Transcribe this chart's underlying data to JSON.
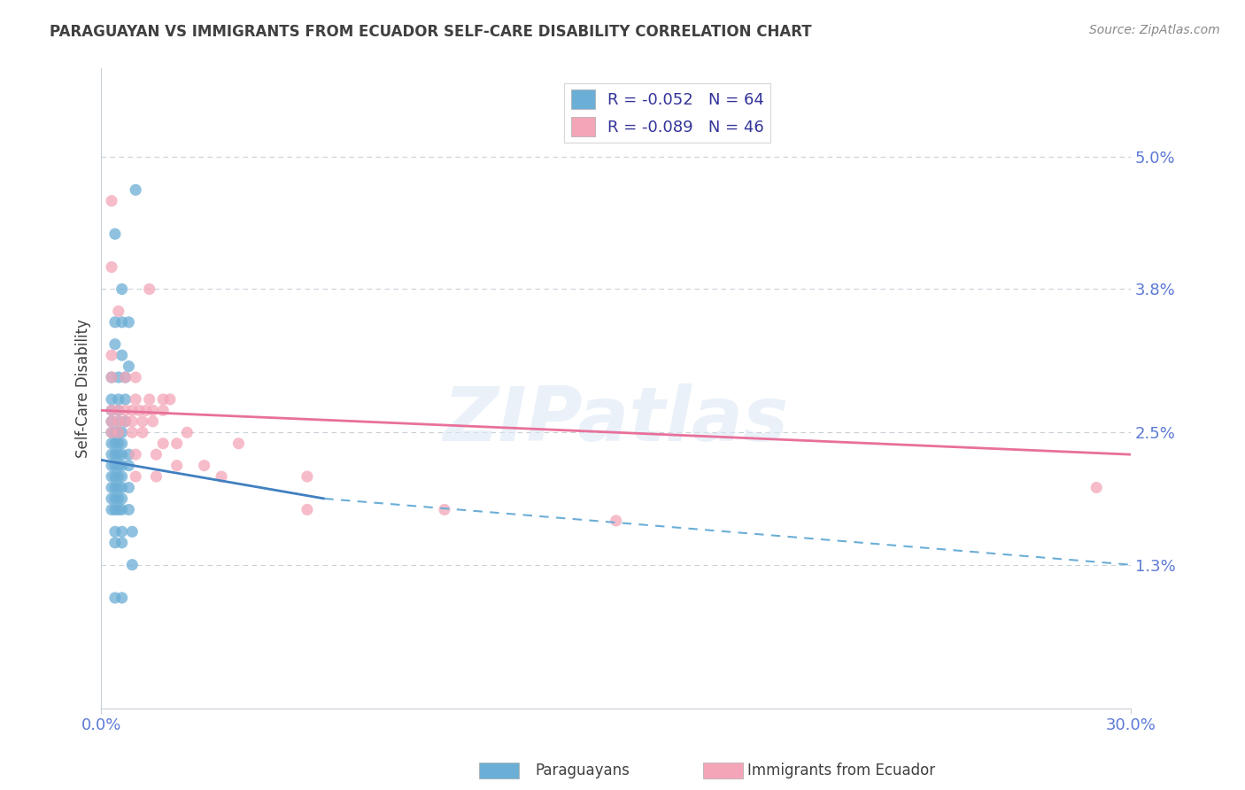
{
  "title": "PARAGUAYAN VS IMMIGRANTS FROM ECUADOR SELF-CARE DISABILITY CORRELATION CHART",
  "source_text": "Source: ZipAtlas.com",
  "ylabel": "Self-Care Disability",
  "xlim": [
    0.0,
    0.3
  ],
  "ylim": [
    0.0,
    0.058
  ],
  "ytick_labels": [
    "1.3%",
    "2.5%",
    "3.8%",
    "5.0%"
  ],
  "ytick_values": [
    0.013,
    0.025,
    0.038,
    0.05
  ],
  "xtick_labels": [
    "0.0%",
    "30.0%"
  ],
  "xtick_values": [
    0.0,
    0.3
  ],
  "legend_entry1": "R = -0.052   N = 64",
  "legend_entry2": "R = -0.089   N = 46",
  "legend_label1": "Paraguayans",
  "legend_label2": "Immigrants from Ecuador",
  "blue_color": "#6baed6",
  "pink_color": "#f4a6b8",
  "blue_scatter": [
    [
      0.004,
      0.043
    ],
    [
      0.006,
      0.038
    ],
    [
      0.01,
      0.047
    ],
    [
      0.004,
      0.035
    ],
    [
      0.006,
      0.035
    ],
    [
      0.008,
      0.035
    ],
    [
      0.004,
      0.033
    ],
    [
      0.006,
      0.032
    ],
    [
      0.008,
      0.031
    ],
    [
      0.003,
      0.03
    ],
    [
      0.005,
      0.03
    ],
    [
      0.007,
      0.03
    ],
    [
      0.003,
      0.028
    ],
    [
      0.005,
      0.028
    ],
    [
      0.007,
      0.028
    ],
    [
      0.003,
      0.027
    ],
    [
      0.005,
      0.027
    ],
    [
      0.003,
      0.026
    ],
    [
      0.005,
      0.026
    ],
    [
      0.007,
      0.026
    ],
    [
      0.003,
      0.025
    ],
    [
      0.004,
      0.025
    ],
    [
      0.005,
      0.025
    ],
    [
      0.006,
      0.025
    ],
    [
      0.003,
      0.024
    ],
    [
      0.004,
      0.024
    ],
    [
      0.005,
      0.024
    ],
    [
      0.006,
      0.024
    ],
    [
      0.003,
      0.023
    ],
    [
      0.004,
      0.023
    ],
    [
      0.005,
      0.023
    ],
    [
      0.006,
      0.023
    ],
    [
      0.008,
      0.023
    ],
    [
      0.003,
      0.022
    ],
    [
      0.004,
      0.022
    ],
    [
      0.005,
      0.022
    ],
    [
      0.006,
      0.022
    ],
    [
      0.008,
      0.022
    ],
    [
      0.003,
      0.021
    ],
    [
      0.004,
      0.021
    ],
    [
      0.005,
      0.021
    ],
    [
      0.006,
      0.021
    ],
    [
      0.003,
      0.02
    ],
    [
      0.004,
      0.02
    ],
    [
      0.005,
      0.02
    ],
    [
      0.006,
      0.02
    ],
    [
      0.008,
      0.02
    ],
    [
      0.003,
      0.019
    ],
    [
      0.004,
      0.019
    ],
    [
      0.005,
      0.019
    ],
    [
      0.006,
      0.019
    ],
    [
      0.003,
      0.018
    ],
    [
      0.004,
      0.018
    ],
    [
      0.005,
      0.018
    ],
    [
      0.006,
      0.018
    ],
    [
      0.008,
      0.018
    ],
    [
      0.004,
      0.016
    ],
    [
      0.006,
      0.016
    ],
    [
      0.009,
      0.016
    ],
    [
      0.004,
      0.015
    ],
    [
      0.006,
      0.015
    ],
    [
      0.009,
      0.013
    ],
    [
      0.004,
      0.01
    ],
    [
      0.006,
      0.01
    ]
  ],
  "pink_scatter": [
    [
      0.003,
      0.046
    ],
    [
      0.003,
      0.04
    ],
    [
      0.014,
      0.038
    ],
    [
      0.005,
      0.036
    ],
    [
      0.003,
      0.032
    ],
    [
      0.003,
      0.03
    ],
    [
      0.007,
      0.03
    ],
    [
      0.01,
      0.03
    ],
    [
      0.01,
      0.028
    ],
    [
      0.014,
      0.028
    ],
    [
      0.018,
      0.028
    ],
    [
      0.02,
      0.028
    ],
    [
      0.003,
      0.027
    ],
    [
      0.005,
      0.027
    ],
    [
      0.007,
      0.027
    ],
    [
      0.009,
      0.027
    ],
    [
      0.011,
      0.027
    ],
    [
      0.013,
      0.027
    ],
    [
      0.015,
      0.027
    ],
    [
      0.018,
      0.027
    ],
    [
      0.003,
      0.026
    ],
    [
      0.005,
      0.026
    ],
    [
      0.007,
      0.026
    ],
    [
      0.009,
      0.026
    ],
    [
      0.012,
      0.026
    ],
    [
      0.015,
      0.026
    ],
    [
      0.003,
      0.025
    ],
    [
      0.005,
      0.025
    ],
    [
      0.009,
      0.025
    ],
    [
      0.012,
      0.025
    ],
    [
      0.025,
      0.025
    ],
    [
      0.018,
      0.024
    ],
    [
      0.022,
      0.024
    ],
    [
      0.04,
      0.024
    ],
    [
      0.01,
      0.023
    ],
    [
      0.016,
      0.023
    ],
    [
      0.022,
      0.022
    ],
    [
      0.03,
      0.022
    ],
    [
      0.01,
      0.021
    ],
    [
      0.016,
      0.021
    ],
    [
      0.035,
      0.021
    ],
    [
      0.06,
      0.021
    ],
    [
      0.29,
      0.02
    ],
    [
      0.06,
      0.018
    ],
    [
      0.1,
      0.018
    ],
    [
      0.15,
      0.017
    ]
  ],
  "watermark_text": "ZIPatlas",
  "background_color": "#ffffff",
  "grid_color": "#c8d0d8",
  "title_color": "#404040",
  "tick_color": "#5c7ad6"
}
